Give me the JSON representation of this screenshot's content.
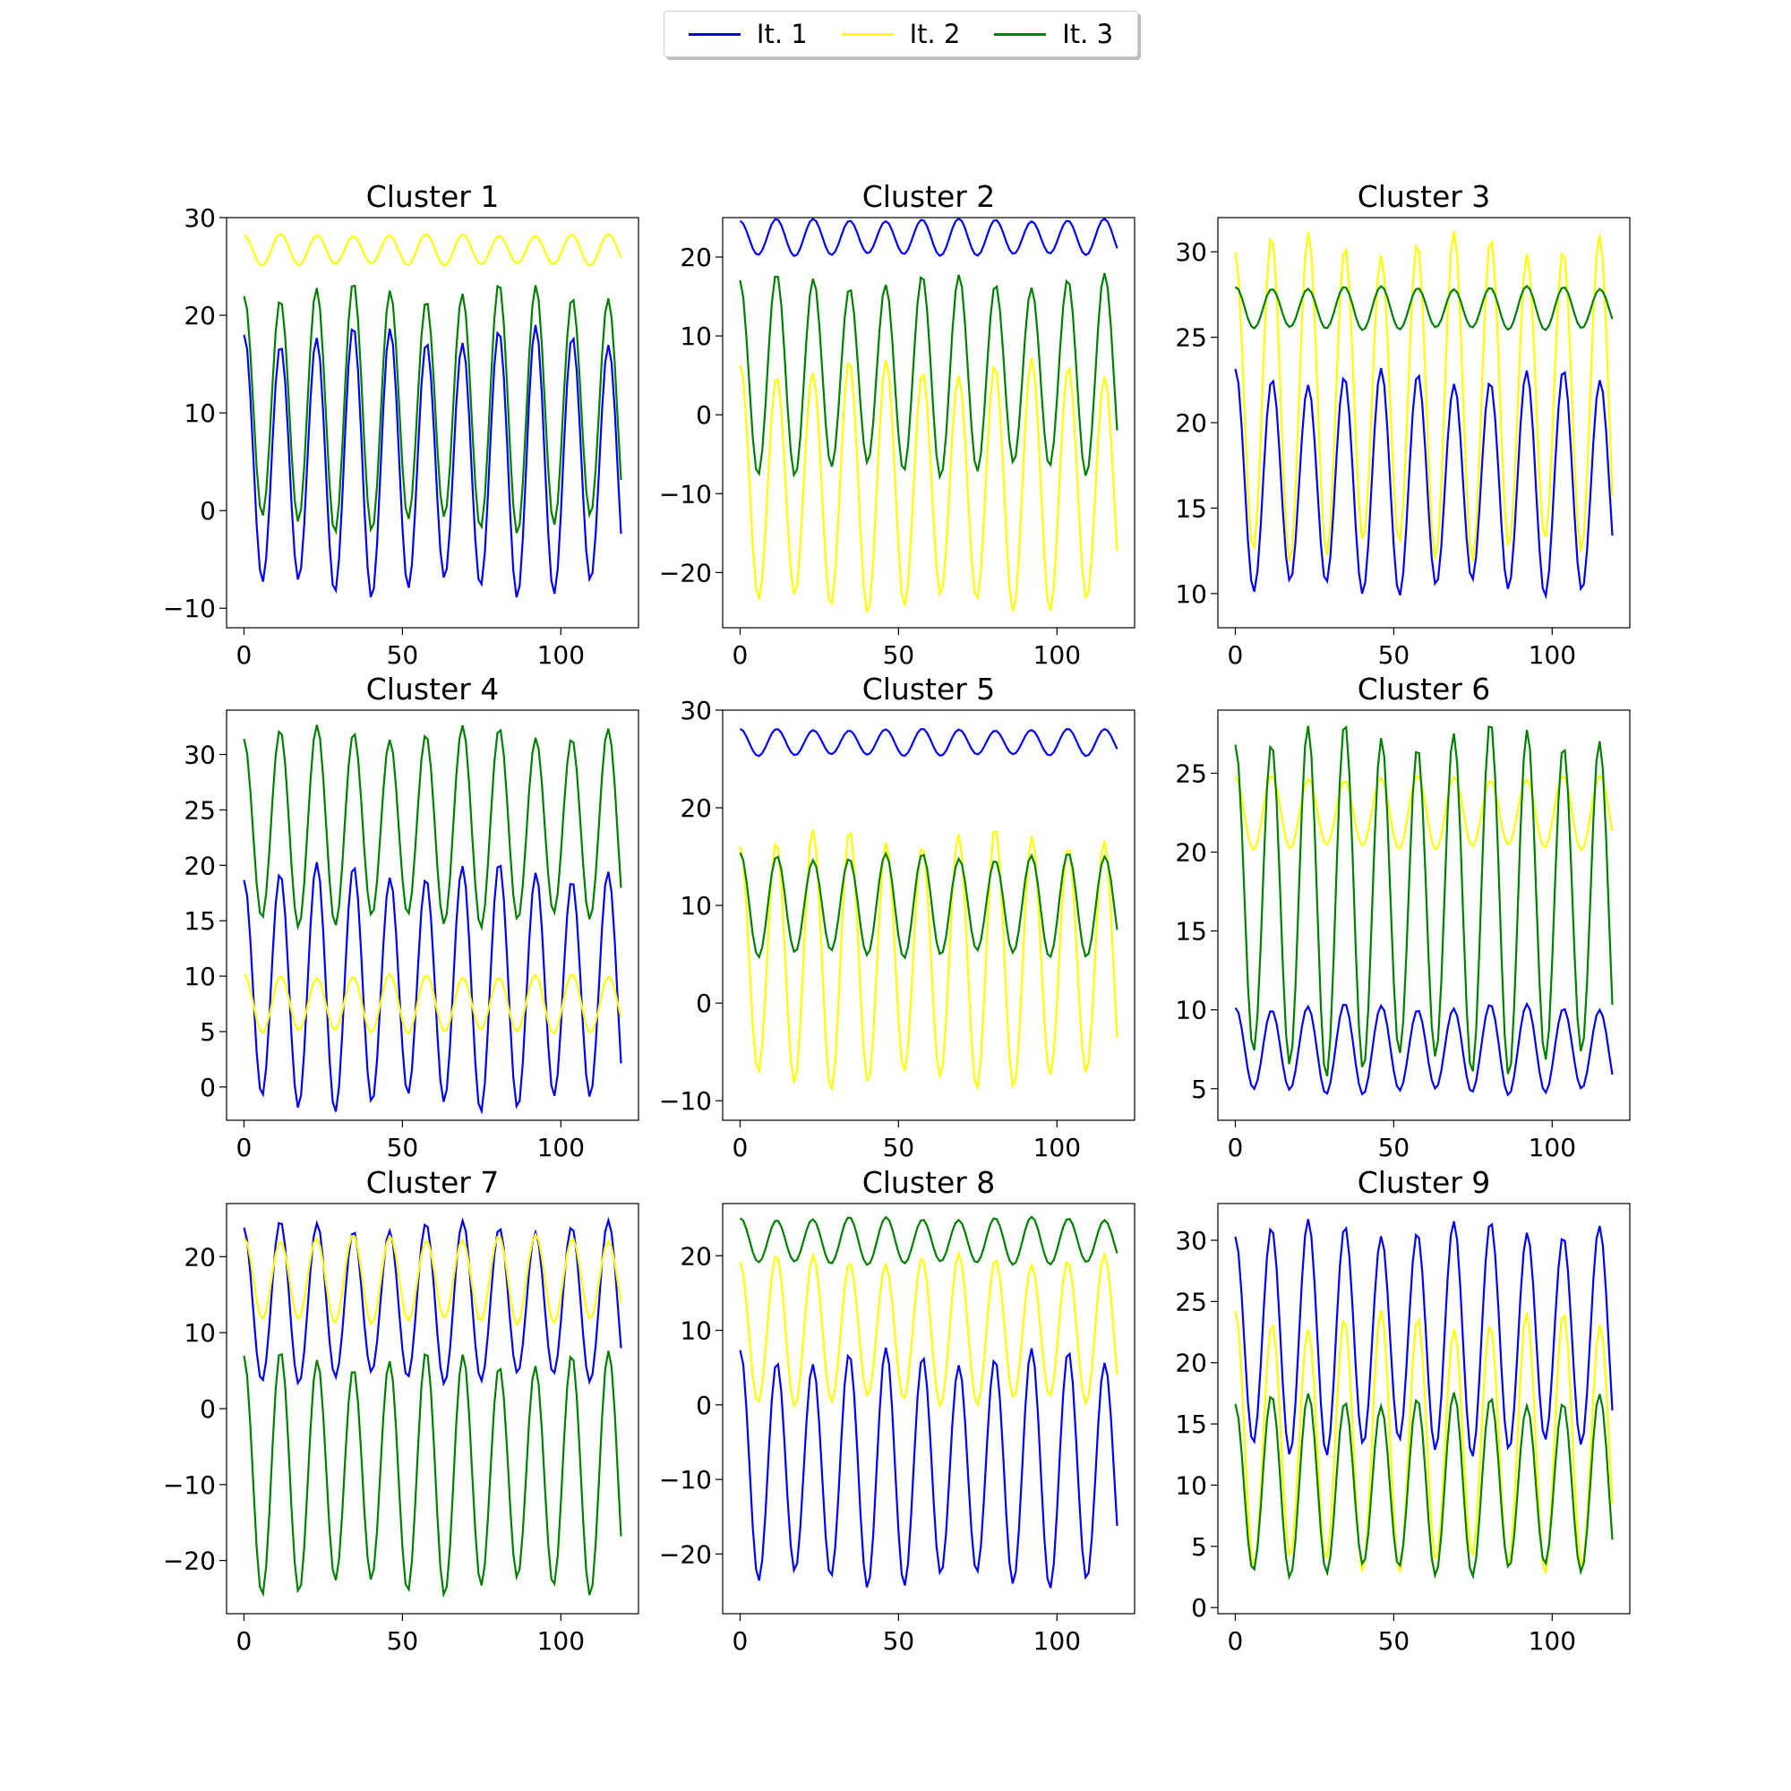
{
  "legend": {
    "items": [
      {
        "label": "It. 1",
        "color": "#0000ff"
      },
      {
        "label": "It. 2",
        "color": "#ffff00"
      },
      {
        "label": "It. 3",
        "color": "#008000"
      }
    ]
  },
  "chart_data": [
    {
      "type": "line",
      "title": "Cluster 1",
      "xlim": [
        0,
        119
      ],
      "ylim": [
        -12,
        30
      ],
      "yticks": [
        -10,
        0,
        10,
        20,
        30
      ],
      "xticks": [
        0,
        50,
        100
      ],
      "series": [
        {
          "name": "It. 1",
          "color": "#0000ff",
          "mean": 5,
          "amp": 13,
          "period": 11.5,
          "phase": 0
        },
        {
          "name": "It. 2",
          "color": "#ffff00",
          "mean": 26.7,
          "amp": 1.5,
          "period": 11.5,
          "phase": 0
        },
        {
          "name": "It. 3",
          "color": "#008000",
          "mean": 10.5,
          "amp": 12,
          "period": 11.5,
          "phase": 0
        }
      ]
    },
    {
      "type": "line",
      "title": "Cluster 2",
      "xlim": [
        0,
        119
      ],
      "ylim": [
        -27,
        25
      ],
      "yticks": [
        -20,
        -10,
        0,
        10,
        20
      ],
      "xticks": [
        0,
        50,
        100
      ],
      "series": [
        {
          "name": "It. 1",
          "color": "#0000ff",
          "mean": 22.5,
          "amp": 2.2,
          "period": 11.5,
          "phase": 0
        },
        {
          "name": "It. 2",
          "color": "#ffff00",
          "mean": -9,
          "amp": 15,
          "period": 11.5,
          "phase": 0
        },
        {
          "name": "It. 3",
          "color": "#008000",
          "mean": 5,
          "amp": 12,
          "period": 11.5,
          "phase": 0
        }
      ]
    },
    {
      "type": "line",
      "title": "Cluster 3",
      "xlim": [
        0,
        119
      ],
      "ylim": [
        8,
        32
      ],
      "yticks": [
        10,
        15,
        20,
        25,
        30
      ],
      "xticks": [
        0,
        50,
        100
      ],
      "series": [
        {
          "name": "It. 1",
          "color": "#0000ff",
          "mean": 16.5,
          "amp": 6.2,
          "period": 11.5,
          "phase": 0
        },
        {
          "name": "It. 2",
          "color": "#ffff00",
          "mean": 21.5,
          "amp": 9,
          "period": 11.5,
          "phase": 0
        },
        {
          "name": "It. 3",
          "color": "#008000",
          "mean": 26.7,
          "amp": 1.2,
          "period": 11.5,
          "phase": 0
        }
      ]
    },
    {
      "type": "line",
      "title": "Cluster 4",
      "xlim": [
        0,
        119
      ],
      "ylim": [
        -3,
        34
      ],
      "yticks": [
        0,
        5,
        10,
        15,
        20,
        25,
        30
      ],
      "xticks": [
        0,
        50,
        100
      ],
      "series": [
        {
          "name": "It. 1",
          "color": "#0000ff",
          "mean": 9,
          "amp": 10.5,
          "period": 11.5,
          "phase": 0
        },
        {
          "name": "It. 2",
          "color": "#ffff00",
          "mean": 7.5,
          "amp": 2.5,
          "period": 11.5,
          "phase": 0
        },
        {
          "name": "It. 3",
          "color": "#008000",
          "mean": 23.5,
          "amp": 8.5,
          "period": 11.5,
          "phase": 0
        }
      ]
    },
    {
      "type": "line",
      "title": "Cluster 5",
      "xlim": [
        0,
        119
      ],
      "ylim": [
        -12,
        30
      ],
      "yticks": [
        -10,
        0,
        10,
        20,
        30
      ],
      "xticks": [
        0,
        50,
        100
      ],
      "series": [
        {
          "name": "It. 1",
          "color": "#0000ff",
          "mean": 26.7,
          "amp": 1.3,
          "period": 11.5,
          "phase": 0
        },
        {
          "name": "It. 2",
          "color": "#ffff00",
          "mean": 4.5,
          "amp": 12.5,
          "period": 11.5,
          "phase": 0
        },
        {
          "name": "It. 3",
          "color": "#008000",
          "mean": 10,
          "amp": 5,
          "period": 11.5,
          "phase": 0
        }
      ]
    },
    {
      "type": "line",
      "title": "Cluster 6",
      "xlim": [
        0,
        119
      ],
      "ylim": [
        3,
        29
      ],
      "yticks": [
        5,
        10,
        15,
        20,
        25
      ],
      "xticks": [
        0,
        50,
        100
      ],
      "series": [
        {
          "name": "It. 1",
          "color": "#0000ff",
          "mean": 7.5,
          "amp": 2.7,
          "period": 11.5,
          "phase": 0
        },
        {
          "name": "It. 2",
          "color": "#ffff00",
          "mean": 22.5,
          "amp": 2.2,
          "period": 11.5,
          "phase": 0
        },
        {
          "name": "It. 3",
          "color": "#008000",
          "mean": 17,
          "amp": 10.5,
          "period": 11.5,
          "phase": 0
        }
      ]
    },
    {
      "type": "line",
      "title": "Cluster 7",
      "xlim": [
        0,
        119
      ],
      "ylim": [
        -27,
        27
      ],
      "yticks": [
        -20,
        -10,
        0,
        10,
        20
      ],
      "xticks": [
        0,
        50,
        100
      ],
      "series": [
        {
          "name": "It. 1",
          "color": "#0000ff",
          "mean": 14,
          "amp": 10,
          "period": 11.5,
          "phase": 0
        },
        {
          "name": "It. 2",
          "color": "#ffff00",
          "mean": 17,
          "amp": 5.5,
          "period": 11.5,
          "phase": 0
        },
        {
          "name": "It. 3",
          "color": "#008000",
          "mean": -8.5,
          "amp": 15,
          "period": 11.5,
          "phase": 0
        }
      ]
    },
    {
      "type": "line",
      "title": "Cluster 8",
      "xlim": [
        0,
        119
      ],
      "ylim": [
        -28,
        27
      ],
      "yticks": [
        -20,
        -10,
        0,
        10,
        20
      ],
      "xticks": [
        0,
        50,
        100
      ],
      "series": [
        {
          "name": "It. 1",
          "color": "#0000ff",
          "mean": -8.5,
          "amp": 15,
          "period": 11.5,
          "phase": 0
        },
        {
          "name": "It. 2",
          "color": "#ffff00",
          "mean": 10,
          "amp": 9.5,
          "period": 11.5,
          "phase": 0
        },
        {
          "name": "It. 3",
          "color": "#008000",
          "mean": 22,
          "amp": 3,
          "period": 11.5,
          "phase": 0
        }
      ]
    },
    {
      "type": "line",
      "title": "Cluster 9",
      "xlim": [
        0,
        119
      ],
      "ylim": [
        -0.5,
        33
      ],
      "yticks": [
        0,
        5,
        10,
        15,
        20,
        25,
        30
      ],
      "xticks": [
        0,
        50,
        100
      ],
      "series": [
        {
          "name": "It. 1",
          "color": "#0000ff",
          "mean": 22,
          "amp": 9,
          "period": 11.5,
          "phase": 0
        },
        {
          "name": "It. 2",
          "color": "#ffff00",
          "mean": 13.5,
          "amp": 10,
          "period": 11.5,
          "phase": 0
        },
        {
          "name": "It. 3",
          "color": "#008000",
          "mean": 10,
          "amp": 7,
          "period": 11.5,
          "phase": 0
        }
      ]
    }
  ]
}
